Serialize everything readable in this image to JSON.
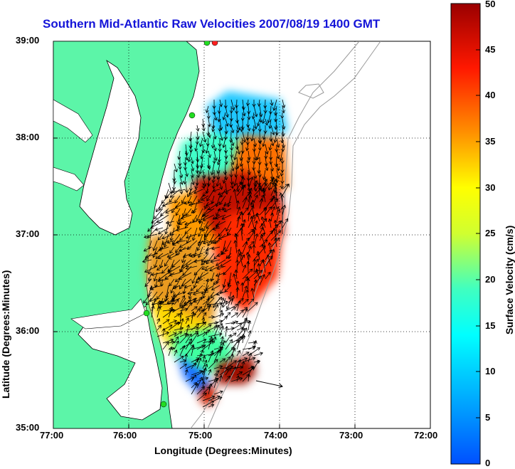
{
  "title": "Southern Mid-Atlantic Raw Velocities 2007/08/19 1400 GMT",
  "axes": {
    "xlabel": "Longitude (Degrees:Minutes)",
    "ylabel": "Latitude (Degrees:Minutes)",
    "x_ticks": [
      "77:00",
      "76:00",
      "75:00",
      "74:00",
      "73:00",
      "72:00"
    ],
    "y_ticks": [
      "39:00",
      "38:00",
      "37:00",
      "36:00",
      "35:00"
    ],
    "xlim": [
      -77,
      -72
    ],
    "ylim": [
      35,
      39
    ],
    "grid": true
  },
  "colorbar": {
    "label": "Surface Velocity (cm/s)",
    "ticks": [
      "50",
      "45",
      "40",
      "35",
      "30",
      "25",
      "20",
      "15",
      "10",
      "5",
      "0"
    ],
    "range": [
      0,
      50
    ],
    "colormap": "jet"
  },
  "colors": {
    "land": "#5cf5a8",
    "coast_line": "#000000",
    "bathymetry": "#9a9a9a",
    "title_color": "#1414d8",
    "station_marker": "#22dd22",
    "station_marker_red": "#ff2020"
  },
  "chart_data": {
    "type": "heatmap",
    "description_fields": "surface current velocity field with vector arrows",
    "stations": [
      {
        "lon": -74.88,
        "lat": 38.98,
        "marker": "green"
      },
      {
        "lon": -74.84,
        "lat": 38.98,
        "marker": "red"
      },
      {
        "lon": -75.09,
        "lat": 38.23,
        "marker": "green"
      },
      {
        "lon": -75.75,
        "lat": 36.19,
        "marker": "green"
      },
      {
        "lon": -75.53,
        "lat": 35.24,
        "marker": "green"
      }
    ],
    "reference_arrow": {
      "lon": -74.3,
      "lat": 35.45,
      "dlon": 0.35,
      "dlat": -0.05
    }
  }
}
